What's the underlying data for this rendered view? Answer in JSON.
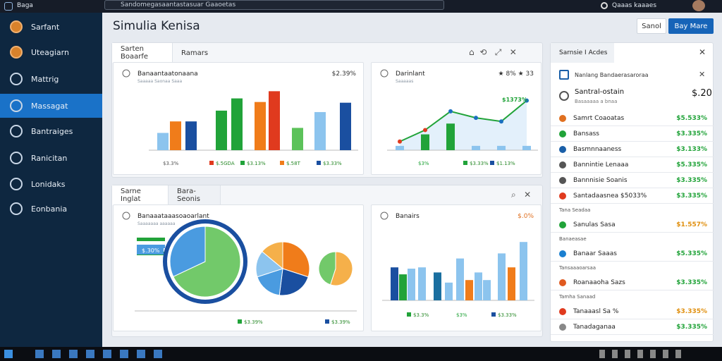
{
  "topbar": {
    "app": "Baga",
    "search": "Sandomegasaantastasuar  Gaaoetas",
    "user": "Qaaas kaaaes"
  },
  "sidebar": [
    "Sarfant",
    "Uteagiarn",
    "Mattrig",
    "Massagat",
    "Bantraiges",
    "Ranicitan",
    "Lonidaks",
    "Eonbania"
  ],
  "header": {
    "title": "Simulia Kenisa",
    "buttons": [
      "Sanol",
      "Bay Mare"
    ]
  },
  "row1": {
    "tabs": [
      "Sarten Boaarfe",
      "Ramars"
    ]
  },
  "row2": {
    "tabs": [
      "Sarne Inglat",
      "Bara-Seonis"
    ]
  },
  "cards": [
    {
      "title": "Banaantaatonaana",
      "value": "$2.39%",
      "sub": "Saaaaa  Saonaa Saaa",
      "foot": "$3.3%",
      "legend": [
        "$.5GDA",
        "$3.13%",
        "$.58T",
        "$3.33%"
      ],
      "values": [
        24,
        40,
        40,
        55,
        72,
        67,
        82,
        31,
        53,
        66
      ],
      "colors": [
        "#8cc4ee",
        "#f07c1a",
        "#1a4fa0",
        "#21a339",
        "#21a339",
        "#f07c1a",
        "#e03a1e",
        "#5cc25a",
        "#8cc4ee",
        "#1a4fa0"
      ]
    },
    {
      "title": "Darinlant",
      "value": "★ 8% ★ 33",
      "sub": "Saaaaas",
      "note": "$1373%",
      "foot": "$3%",
      "legend": [
        "$3.33%",
        "$1.13%"
      ],
      "values": [
        6,
        22,
        37,
        6,
        6,
        6
      ],
      "colors": [
        "#8cc4ee",
        "#21a339",
        "#21a339",
        "#8cc4ee",
        "#8cc4ee",
        "#8cc4ee"
      ],
      "line": [
        12,
        28,
        54,
        45,
        40,
        69
      ],
      "line_color": "#21a339"
    },
    {
      "title": "Banaaataaasoaoarlant",
      "sub": "Saaaaaaa aaaaaa",
      "tag": "$.30%",
      "legend": [
        "$3.39%",
        "$3.39%"
      ],
      "pies": [
        {
          "values": [
            68,
            32
          ],
          "colors": [
            "#72c96a",
            "#4a9be0"
          ]
        },
        {
          "values": [
            30,
            22,
            18,
            16,
            14
          ],
          "colors": [
            "#f07c1a",
            "#1a4fa0",
            "#4a9be0",
            "#8cc4ee",
            "#f5b04a"
          ]
        },
        {
          "values": [
            55,
            45
          ],
          "colors": [
            "#f5b04a",
            "#72c96a"
          ]
        }
      ]
    },
    {
      "title": "Banairs",
      "value": "$.0%",
      "foot": "$3%",
      "legend": [
        "$3.3%",
        "$3.33%"
      ],
      "values": [
        52,
        41,
        50,
        52,
        44,
        28,
        66,
        32,
        44,
        32,
        74,
        52,
        92
      ],
      "colors": [
        "#1a4fa0",
        "#21a339",
        "#8cc4ee",
        "#8cc4ee",
        "#1a6fa0",
        "#8cc4ee",
        "#8cc4ee",
        "#f07c1a",
        "#8cc4ee",
        "#8cc4ee",
        "#8cc4ee",
        "#f07c1a",
        "#8cc4ee"
      ]
    }
  ],
  "right": {
    "title": "Sarnsie I Acdes",
    "alert": "Nanlang Bandaerasaroraa",
    "summary": {
      "label": "Santral-ostain",
      "sub": "Basaaaaa a bnaa",
      "value": "$.20"
    },
    "items": [
      {
        "label": "Samrt Coaoatas",
        "value": "$5.533%"
      },
      {
        "label": "Bansass",
        "value": "$3.335%"
      },
      {
        "label": "Basmnnaaness",
        "value": "$3.133%"
      },
      {
        "label": "Bannintie Lenaaa",
        "value": "$5.335%"
      },
      {
        "label": "Bannnisie Soanis",
        "value": "$3.335%"
      },
      {
        "label": "Santadaasnea $5033%",
        "value": "$3.335%"
      },
      {
        "section": "Tana Seadaa"
      },
      {
        "label": "Sanulas Sasa",
        "value": "$1.557%"
      },
      {
        "section": "Banaeasae"
      },
      {
        "label": "Banaar Saaas",
        "value": "$5.335%"
      },
      {
        "section": "Tansaaaoarsaa"
      },
      {
        "label": "Roanaaoha Sazs",
        "value": "$3.335%"
      },
      {
        "section": "Tamha Sanaad"
      },
      {
        "label": "Tanaaasl Sa %",
        "value": "$3.335%"
      },
      {
        "label": "Tanadaganaa",
        "value": "$3.335%"
      }
    ]
  }
}
